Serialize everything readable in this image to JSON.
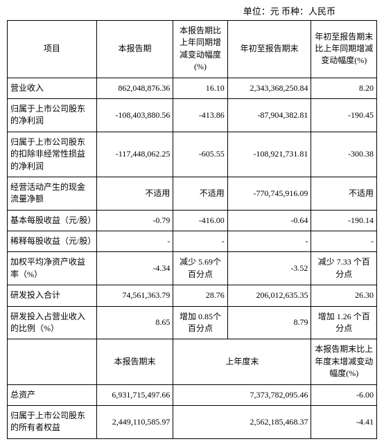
{
  "unit_line": "单位：元   币种：人民币",
  "header": {
    "c1": "项目",
    "c2": "本报告期",
    "c3": "本报告期比上年同期增减变动幅度(%)",
    "c4": "年初至报告期末",
    "c5": "年初至报告期末比上年同期增减变动幅度(%)"
  },
  "rows": [
    {
      "label": "营业收入",
      "a": "862,048,876.36",
      "b": "16.10",
      "c": "2,343,368,250.84",
      "d": "8.20"
    },
    {
      "label": "归属于上市公司股东的净利润",
      "a": "-108,403,880.56",
      "b": "-413.86",
      "c": "-87,904,382.81",
      "d": "-190.45"
    },
    {
      "label": "归属于上市公司股东的扣除非经常性损益的净利润",
      "a": "-117,448,062.25",
      "b": "-605.55",
      "c": "-108,921,731.81",
      "d": "-300.38"
    },
    {
      "label": "经营活动产生的现金流量净额",
      "a": "不适用",
      "b": "不适用",
      "c": "-770,745,916.09",
      "d": "不适用"
    },
    {
      "label": "基本每股收益（元/股）",
      "a": "-0.79",
      "b": "-416.00",
      "c": "-0.64",
      "d": "-190.14"
    },
    {
      "label": "稀释每股收益（元/股）",
      "a": "-",
      "b": "-",
      "c": "-",
      "d": "-"
    },
    {
      "label": "加权平均净资产收益率（%）",
      "a": "-4.34",
      "b": "减少 5.69个百分点",
      "c": "-3.52",
      "d": "减少 7.33 个百分点"
    },
    {
      "label": "研发投入合计",
      "a": "74,561,363.79",
      "b": "28.76",
      "c": "206,012,635.35",
      "d": "26.30"
    },
    {
      "label": "研发投入占营业收入的比例（%）",
      "a": "8.65",
      "b": "增加 0.85个百分点",
      "c": "8.79",
      "d": "增加 1.26 个百分点"
    }
  ],
  "header2": {
    "c2": "本报告期末",
    "c3": "上年度末",
    "c4": "本报告期末比上年度末增减变动幅度(%)"
  },
  "rows2": [
    {
      "label": "总资产",
      "a": "6,931,715,497.66",
      "b": "7,373,782,095.46",
      "c": "-6.00"
    },
    {
      "label": "归属于上市公司股东的所有者权益",
      "a": "2,449,110,585.97",
      "b": "2,562,185,468.37",
      "c": "-4.41"
    }
  ]
}
